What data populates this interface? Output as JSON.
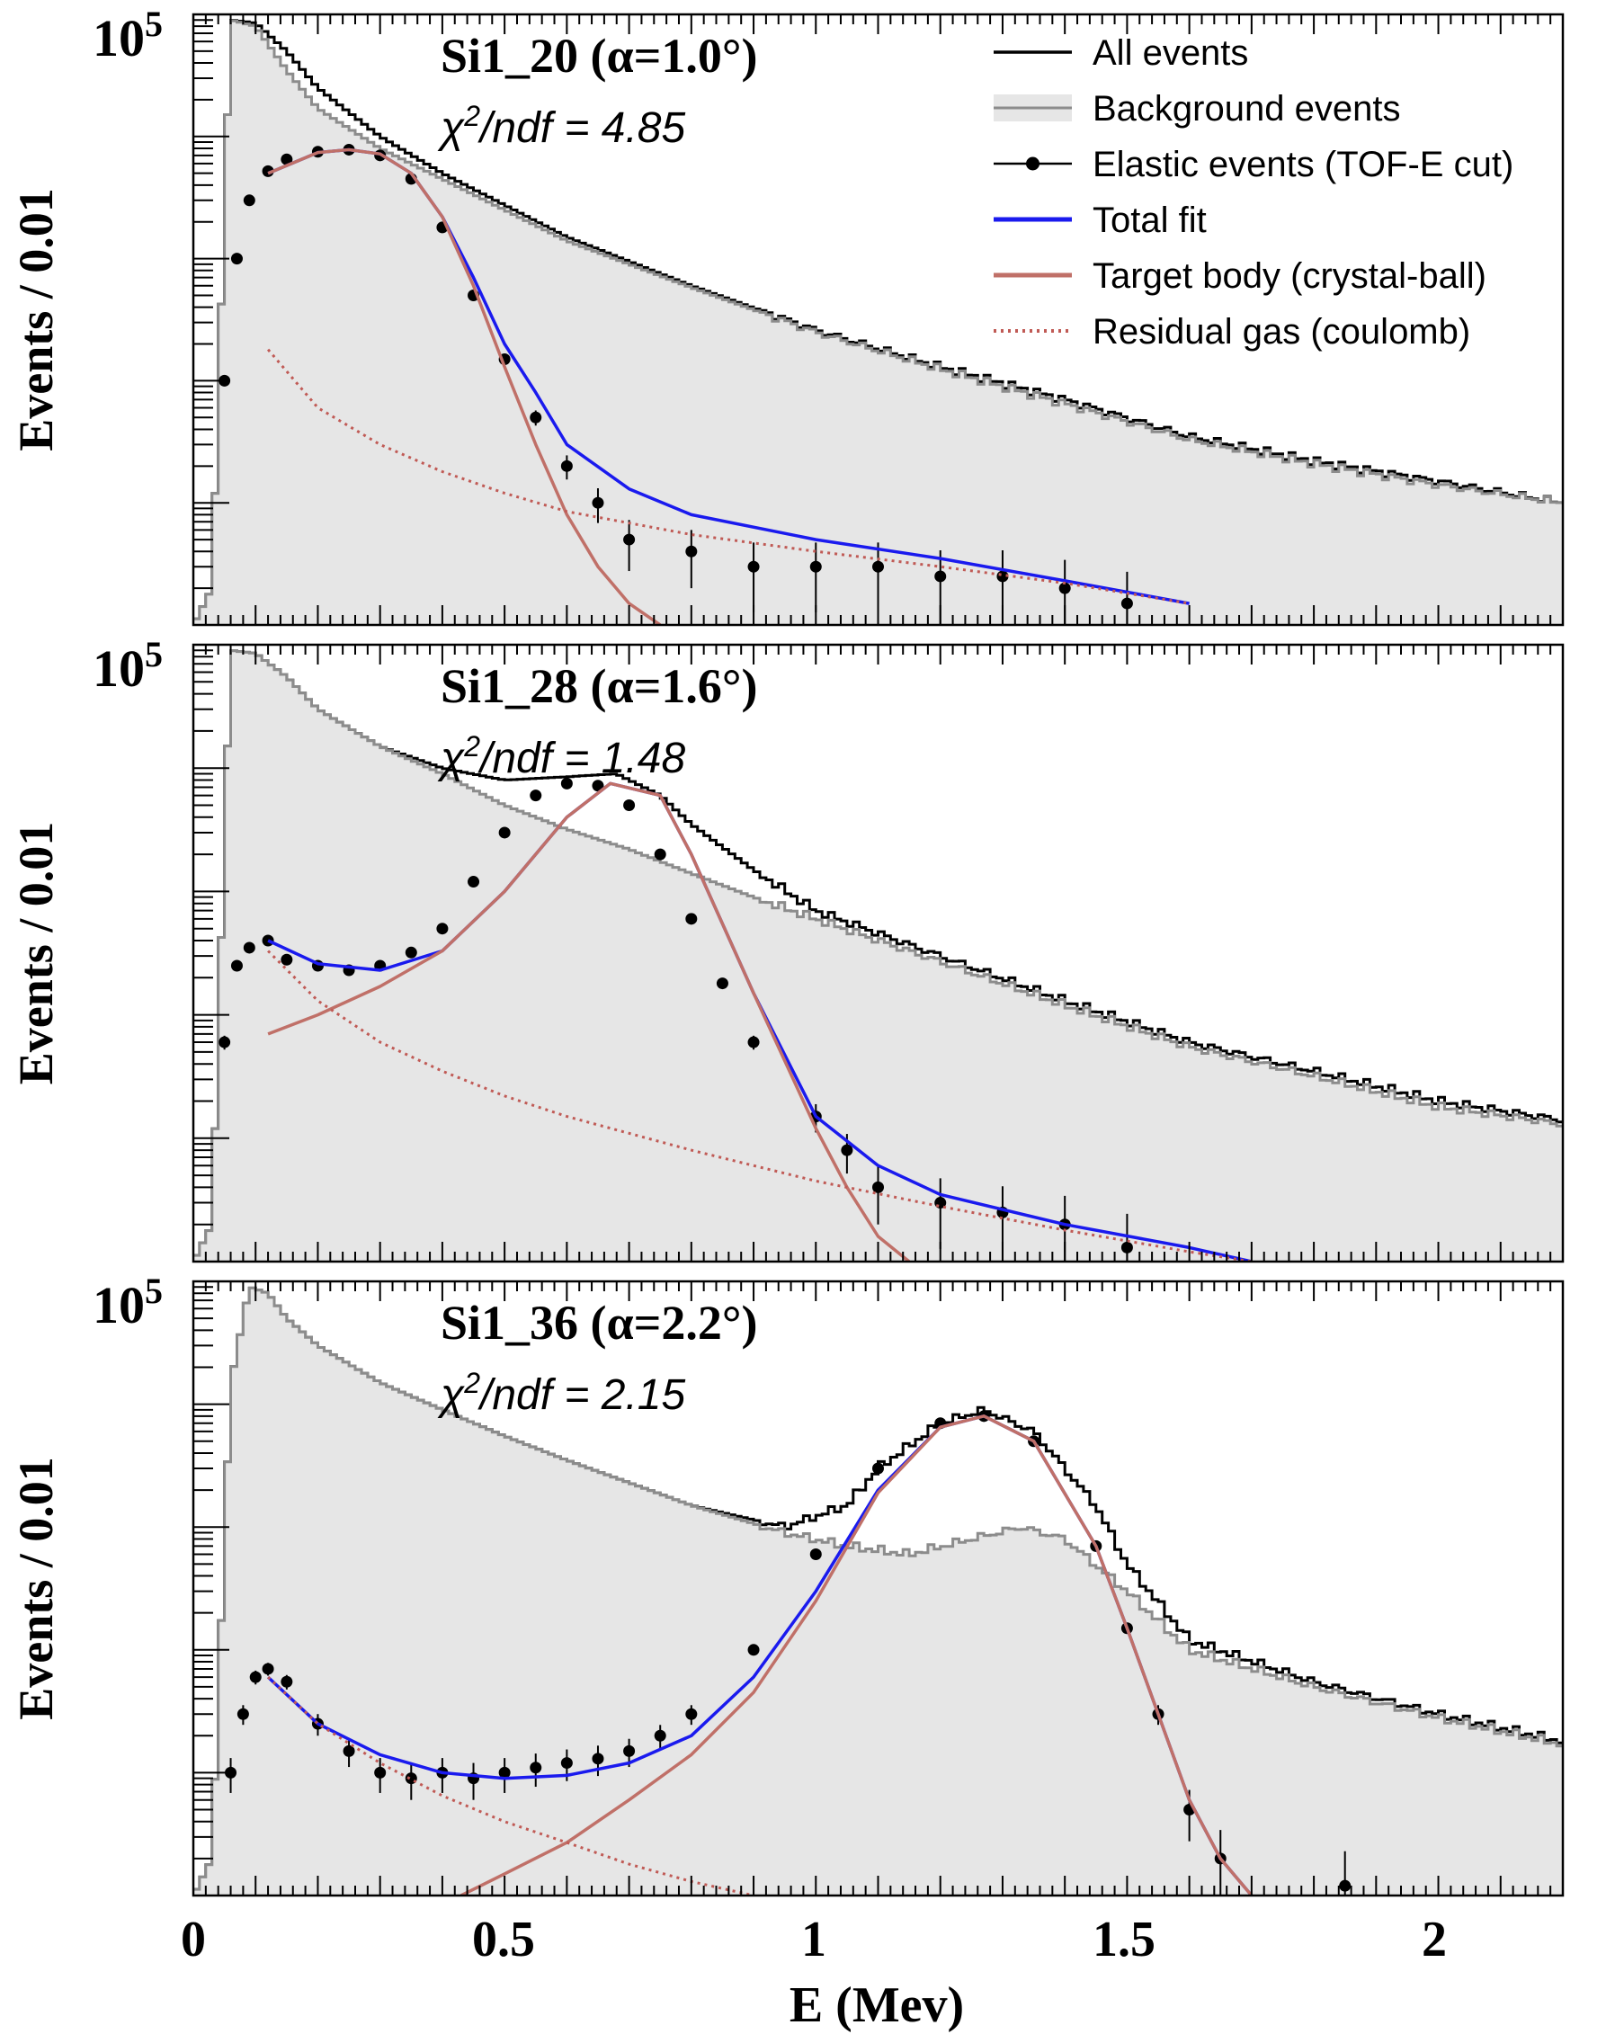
{
  "chart_data": [
    {
      "type": "histogram",
      "title": "Si1_20 (α=1.0°)",
      "subtitle": "χ²/ndf = 4.85",
      "chi2": "4.85",
      "ylabel": "Events / 0.01",
      "xlabel": "",
      "xlim": [
        0,
        2.2
      ],
      "ylim": [
        1,
        100000
      ],
      "yscale": "log",
      "ytick_label": "10⁵",
      "grid": false,
      "peak_mev": 0.25,
      "series": [
        {
          "name": "All events",
          "style": "black-step",
          "x": [
            0.0,
            0.03,
            0.06,
            0.1,
            0.15,
            0.2,
            0.3,
            0.4,
            0.6,
            0.8,
            1.0,
            1.2,
            1.4,
            1.6,
            1.8,
            2.0,
            2.2
          ],
          "y": [
            1,
            2,
            90000,
            85000,
            50000,
            25000,
            10000,
            5000,
            1500,
            600,
            260,
            130,
            70,
            35,
            22,
            15,
            10
          ]
        },
        {
          "name": "Background events",
          "style": "grey-filled-step",
          "x": [
            0.0,
            0.03,
            0.06,
            0.1,
            0.15,
            0.2,
            0.3,
            0.4,
            0.6,
            0.8,
            1.0,
            1.2,
            1.4,
            1.6,
            1.8,
            2.0,
            2.2
          ],
          "y": [
            1,
            2,
            90000,
            80000,
            35000,
            17000,
            8000,
            4500,
            1400,
            580,
            250,
            125,
            65,
            33,
            21,
            14,
            10
          ]
        },
        {
          "name": "Elastic events (TOF-E cut)",
          "style": "black-points",
          "x": [
            0.05,
            0.07,
            0.09,
            0.12,
            0.15,
            0.2,
            0.25,
            0.3,
            0.35,
            0.4,
            0.45,
            0.5,
            0.55,
            0.6,
            0.65,
            0.7,
            0.8,
            0.9,
            1.0,
            1.1,
            1.2,
            1.3,
            1.4,
            1.5
          ],
          "y": [
            100,
            1000,
            3000,
            5200,
            6500,
            7500,
            7800,
            7000,
            4500,
            1800,
            500,
            150,
            50,
            20,
            10,
            5,
            4,
            3,
            3,
            3,
            2.5,
            2.5,
            2,
            1.5
          ]
        },
        {
          "name": "Total fit",
          "style": "blue-line",
          "x": [
            0.12,
            0.2,
            0.25,
            0.3,
            0.35,
            0.4,
            0.45,
            0.5,
            0.55,
            0.6,
            0.7,
            0.8,
            1.0,
            1.2,
            1.4,
            1.6
          ],
          "y": [
            5000,
            7400,
            7800,
            7200,
            5000,
            2200,
            700,
            200,
            80,
            30,
            13,
            8,
            5,
            3.5,
            2.3,
            1.5
          ]
        },
        {
          "name": "Target body (crystal-ball)",
          "style": "red-line",
          "x": [
            0.12,
            0.2,
            0.25,
            0.3,
            0.35,
            0.4,
            0.45,
            0.5,
            0.55,
            0.6,
            0.65,
            0.7,
            0.75
          ],
          "y": [
            5000,
            7400,
            7800,
            7200,
            5000,
            2200,
            600,
            130,
            30,
            8,
            3,
            1.5,
            1
          ]
        },
        {
          "name": "Residual gas (coulomb)",
          "style": "red-dotted",
          "x": [
            0.12,
            0.2,
            0.3,
            0.4,
            0.5,
            0.6,
            0.8,
            1.0,
            1.2,
            1.4,
            1.6
          ],
          "y": [
            180,
            60,
            30,
            18,
            12,
            8.5,
            5.5,
            4,
            3,
            2.2,
            1.5
          ]
        }
      ]
    },
    {
      "type": "histogram",
      "title": "Si1_28 (α=1.6°)",
      "subtitle": "χ²/ndf = 1.48",
      "chi2": "1.48",
      "ylabel": "Events / 0.01",
      "xlabel": "",
      "xlim": [
        0,
        2.2
      ],
      "ylim": [
        1,
        100000
      ],
      "yscale": "log",
      "ytick_label": "10⁵",
      "grid": false,
      "peak_mev": 0.68,
      "series": [
        {
          "name": "All events",
          "style": "black-step",
          "x": [
            0.0,
            0.03,
            0.06,
            0.1,
            0.15,
            0.2,
            0.3,
            0.4,
            0.5,
            0.6,
            0.68,
            0.75,
            0.8,
            0.9,
            1.0,
            1.2,
            1.4,
            1.6,
            1.8,
            2.0,
            2.2
          ],
          "y": [
            1,
            2,
            90000,
            85000,
            55000,
            30000,
            15000,
            10000,
            8000,
            8500,
            9000,
            6000,
            3500,
            1500,
            700,
            300,
            130,
            60,
            35,
            20,
            14
          ]
        },
        {
          "name": "Background events",
          "style": "grey-filled-step",
          "x": [
            0.0,
            0.03,
            0.06,
            0.1,
            0.15,
            0.2,
            0.3,
            0.4,
            0.5,
            0.6,
            0.7,
            0.8,
            0.9,
            1.0,
            1.2,
            1.4,
            1.6,
            1.8,
            2.0,
            2.2
          ],
          "y": [
            1,
            2,
            90000,
            85000,
            55000,
            30000,
            15000,
            9000,
            5000,
            3200,
            2200,
            1400,
            900,
            600,
            270,
            120,
            55,
            32,
            18,
            13
          ]
        },
        {
          "name": "Elastic events (TOF-E cut)",
          "style": "black-points",
          "x": [
            0.05,
            0.07,
            0.09,
            0.12,
            0.15,
            0.2,
            0.25,
            0.3,
            0.35,
            0.4,
            0.45,
            0.5,
            0.55,
            0.6,
            0.65,
            0.7,
            0.75,
            0.8,
            0.85,
            0.9,
            1.0,
            1.05,
            1.1,
            1.2,
            1.3,
            1.4,
            1.5
          ],
          "y": [
            60,
            250,
            350,
            400,
            280,
            250,
            230,
            250,
            320,
            500,
            1200,
            3000,
            6000,
            7500,
            7200,
            5000,
            2000,
            600,
            180,
            60,
            15,
            8,
            4,
            3,
            2.5,
            2,
            1.3
          ]
        },
        {
          "name": "Total fit",
          "style": "blue-line",
          "x": [
            0.12,
            0.2,
            0.3,
            0.4,
            0.5,
            0.6,
            0.67,
            0.75,
            0.8,
            0.9,
            1.0,
            1.1,
            1.2,
            1.4,
            1.6,
            1.7
          ],
          "y": [
            400,
            260,
            230,
            330,
            1000,
            4000,
            7500,
            6000,
            2000,
            150,
            15,
            6,
            3.5,
            2,
            1.3,
            1
          ]
        },
        {
          "name": "Target body (crystal-ball)",
          "style": "red-line",
          "x": [
            0.12,
            0.2,
            0.3,
            0.4,
            0.5,
            0.6,
            0.67,
            0.75,
            0.8,
            0.9,
            1.0,
            1.05,
            1.1,
            1.15
          ],
          "y": [
            70,
            100,
            170,
            330,
            1000,
            4000,
            7500,
            6000,
            2000,
            150,
            12,
            4,
            1.6,
            1
          ]
        },
        {
          "name": "Residual gas (coulomb)",
          "style": "red-dotted",
          "x": [
            0.12,
            0.2,
            0.3,
            0.4,
            0.5,
            0.6,
            0.8,
            1.0,
            1.2,
            1.4,
            1.6,
            1.7
          ],
          "y": [
            330,
            130,
            60,
            35,
            22,
            15,
            8,
            4.5,
            2.8,
            1.8,
            1.2,
            1
          ]
        }
      ]
    },
    {
      "type": "histogram",
      "title": "Si1_36 (α=2.2°)",
      "subtitle": "χ²/ndf = 2.15",
      "chi2": "2.15",
      "ylabel": "Events / 0.01",
      "xlabel": "E (Mev)",
      "xlim": [
        0,
        2.2
      ],
      "xticks": [
        0,
        0.5,
        1,
        1.5,
        2
      ],
      "xtick_labels": [
        "0",
        "0.5",
        "1",
        "1.5",
        "2"
      ],
      "ylim": [
        1,
        100000
      ],
      "yscale": "log",
      "ytick_label": "10⁵",
      "grid": false,
      "peak_mev": 1.27,
      "series": [
        {
          "name": "All events",
          "style": "black-step",
          "x": [
            0.0,
            0.03,
            0.06,
            0.09,
            0.12,
            0.15,
            0.2,
            0.3,
            0.4,
            0.5,
            0.6,
            0.8,
            0.95,
            1.05,
            1.1,
            1.2,
            1.27,
            1.35,
            1.45,
            1.5,
            1.6,
            1.8,
            2.0,
            2.2
          ],
          "y": [
            1,
            2,
            15000,
            90000,
            80000,
            50000,
            30000,
            15000,
            9000,
            5500,
            3500,
            1500,
            1000,
            1500,
            3000,
            7000,
            9000,
            6000,
            1500,
            500,
            120,
            55,
            30,
            18
          ]
        },
        {
          "name": "Background events",
          "style": "grey-filled-step",
          "x": [
            0.0,
            0.03,
            0.06,
            0.09,
            0.12,
            0.15,
            0.2,
            0.3,
            0.4,
            0.5,
            0.6,
            0.8,
            0.95,
            1.05,
            1.15,
            1.25,
            1.33,
            1.4,
            1.5,
            1.6,
            1.8,
            2.0,
            2.2
          ],
          "y": [
            1,
            2,
            15000,
            90000,
            80000,
            50000,
            30000,
            15000,
            9000,
            5500,
            3500,
            1500,
            900,
            700,
            600,
            800,
            1000,
            800,
            300,
            100,
            50,
            28,
            17
          ]
        },
        {
          "name": "Elastic events (TOF-E cut)",
          "style": "black-points",
          "x": [
            0.06,
            0.08,
            0.1,
            0.12,
            0.15,
            0.2,
            0.25,
            0.3,
            0.35,
            0.4,
            0.45,
            0.5,
            0.55,
            0.6,
            0.65,
            0.7,
            0.75,
            0.8,
            0.9,
            1.0,
            1.1,
            1.2,
            1.27,
            1.35,
            1.45,
            1.5,
            1.55,
            1.6,
            1.65,
            1.85
          ],
          "y": [
            10,
            30,
            60,
            70,
            55,
            25,
            15,
            10,
            9,
            10,
            9,
            10,
            11,
            12,
            13,
            15,
            20,
            30,
            100,
            600,
            3000,
            7000,
            8000,
            5000,
            700,
            150,
            30,
            5,
            2,
            1.2
          ]
        },
        {
          "name": "Total fit",
          "style": "blue-line",
          "x": [
            0.12,
            0.2,
            0.3,
            0.4,
            0.5,
            0.6,
            0.7,
            0.8,
            0.9,
            1.0,
            1.1,
            1.2,
            1.27,
            1.35,
            1.45,
            1.5,
            1.55,
            1.6,
            1.65,
            1.7
          ],
          "y": [
            60,
            25,
            14,
            10,
            9,
            9.5,
            12,
            20,
            60,
            300,
            2000,
            6500,
            8000,
            5000,
            700,
            150,
            30,
            6,
            2,
            1
          ]
        },
        {
          "name": "Target body (crystal-ball)",
          "style": "red-line",
          "x": [
            0.43,
            0.5,
            0.6,
            0.7,
            0.8,
            0.9,
            1.0,
            1.1,
            1.2,
            1.27,
            1.35,
            1.45,
            1.5,
            1.55,
            1.6,
            1.65,
            1.7
          ],
          "y": [
            1,
            1.5,
            2.7,
            6,
            14,
            45,
            250,
            1900,
            6500,
            8000,
            5000,
            700,
            150,
            30,
            6,
            2,
            1
          ]
        },
        {
          "name": "Residual gas (coulomb)",
          "style": "red-dotted",
          "x": [
            0.12,
            0.2,
            0.3,
            0.4,
            0.5,
            0.6,
            0.7,
            0.8,
            0.9
          ],
          "y": [
            60,
            25,
            12,
            6.5,
            4,
            2.7,
            1.8,
            1.3,
            1
          ]
        }
      ]
    }
  ],
  "legend": {
    "placement": "top-right of first panel",
    "entries": [
      {
        "label": "All events",
        "style": "black-line"
      },
      {
        "label": "Background events",
        "style": "grey-box"
      },
      {
        "label": "Elastic events (TOF-E cut)",
        "style": "line-dot"
      },
      {
        "label": "Total fit",
        "style": "blue-line"
      },
      {
        "label": "Target body (crystal-ball)",
        "style": "red-line"
      },
      {
        "label": "Residual gas (coulomb)",
        "style": "red-dotted"
      }
    ]
  },
  "colors": {
    "all_events": "#000000",
    "background_fill": "#e6e6e6",
    "background_line": "#8c8c8c",
    "elastic_points": "#000000",
    "total_fit": "#1a1aee",
    "target_body": "#c07068",
    "residual_gas": "#c05a55"
  }
}
